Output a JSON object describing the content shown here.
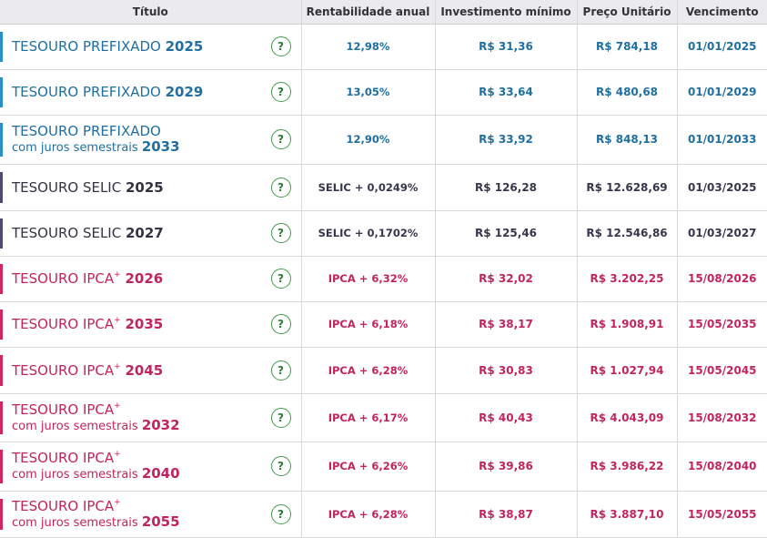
{
  "columns": [
    "Título",
    "Rentabilidade anual",
    "Investimento mínimo",
    "Preço Unitário",
    "Vencimento"
  ],
  "help_label": "?",
  "rows": [
    {
      "type": "pre",
      "name": "TESOURO PREFIXADO",
      "plus": "",
      "sub": "",
      "year": "2025",
      "rentab": "12,98%",
      "minimo": "R$ 31,36",
      "preco": "R$ 784,18",
      "venc": "01/01/2025"
    },
    {
      "type": "pre",
      "name": "TESOURO PREFIXADO",
      "plus": "",
      "sub": "",
      "year": "2029",
      "rentab": "13,05%",
      "minimo": "R$ 33,64",
      "preco": "R$ 480,68",
      "venc": "01/01/2029"
    },
    {
      "type": "pre",
      "name": "TESOURO PREFIXADO",
      "plus": "",
      "sub": "com juros semestrais",
      "year": "2033",
      "rentab": "12,90%",
      "minimo": "R$ 33,92",
      "preco": "R$ 848,13",
      "venc": "01/01/2033"
    },
    {
      "type": "sel",
      "name": "TESOURO SELIC",
      "plus": "",
      "sub": "",
      "year": "2025",
      "rentab": "SELIC + 0,0249%",
      "minimo": "R$ 126,28",
      "preco": "R$ 12.628,69",
      "venc": "01/03/2025"
    },
    {
      "type": "sel",
      "name": "TESOURO SELIC",
      "plus": "",
      "sub": "",
      "year": "2027",
      "rentab": "SELIC + 0,1702%",
      "minimo": "R$ 125,46",
      "preco": "R$ 12.546,86",
      "venc": "01/03/2027"
    },
    {
      "type": "ipc",
      "name": "TESOURO IPCA",
      "plus": "+",
      "sub": "",
      "year": "2026",
      "rentab": "IPCA + 6,32%",
      "minimo": "R$ 32,02",
      "preco": "R$ 3.202,25",
      "venc": "15/08/2026"
    },
    {
      "type": "ipc",
      "name": "TESOURO IPCA",
      "plus": "+",
      "sub": "",
      "year": "2035",
      "rentab": "IPCA + 6,18%",
      "minimo": "R$ 38,17",
      "preco": "R$ 1.908,91",
      "venc": "15/05/2035"
    },
    {
      "type": "ipc",
      "name": "TESOURO IPCA",
      "plus": "+",
      "sub": "",
      "year": "2045",
      "rentab": "IPCA + 6,28%",
      "minimo": "R$ 30,83",
      "preco": "R$ 1.027,94",
      "venc": "15/05/2045"
    },
    {
      "type": "ipc",
      "name": "TESOURO IPCA",
      "plus": "+",
      "sub": "com juros semestrais",
      "year": "2032",
      "rentab": "IPCA + 6,17%",
      "minimo": "R$ 40,43",
      "preco": "R$ 4.043,09",
      "venc": "15/08/2032"
    },
    {
      "type": "ipc",
      "name": "TESOURO IPCA",
      "plus": "+",
      "sub": "com juros semestrais",
      "year": "2040",
      "rentab": "IPCA + 6,26%",
      "minimo": "R$ 39,86",
      "preco": "R$ 3.986,22",
      "venc": "15/08/2040"
    },
    {
      "type": "ipc",
      "name": "TESOURO IPCA",
      "plus": "+",
      "sub": "com juros semestrais",
      "year": "2055",
      "rentab": "IPCA + 6,28%",
      "minimo": "R$ 38,87",
      "preco": "R$ 3.887,10",
      "venc": "15/05/2055"
    }
  ],
  "colors": {
    "prefixado": "#1f6fa0",
    "selic": "#36364f",
    "ipca": "#c1245e",
    "help": "#3f9a4a"
  }
}
